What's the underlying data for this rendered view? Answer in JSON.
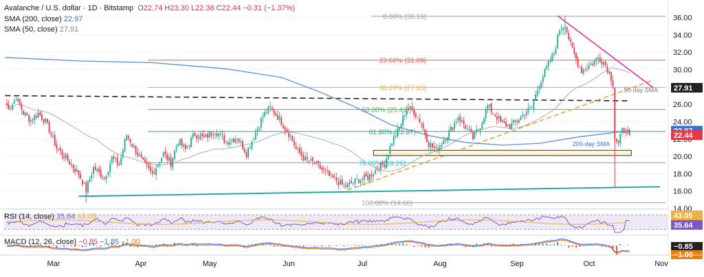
{
  "header": {
    "symbol": "Avalanche / U.S. dollar · 1D · Bitstamp",
    "ohlc": {
      "o_label": "O",
      "o": "22.74",
      "h_label": "H",
      "h": "23.30",
      "l_label": "L",
      "l": "22.38",
      "c_label": "C",
      "c": "22.44",
      "change": "−0.31 (−1.37%)"
    },
    "sma200_label": "SMA (200, close)",
    "sma200_value": "22.97",
    "sma50_label": "SMA (50, close)",
    "sma50_value": "27.91",
    "rsi_label": "RSI (14, close)",
    "rsi_value": "35.64",
    "rsi_value2": "43.05",
    "macd_label": "MACD (12, 26, close)",
    "macd_values": [
      "−0.85",
      "−1.85",
      "−1.00"
    ]
  },
  "colors": {
    "up": "#22ab94",
    "down": "#f23645",
    "sma200": "#5b8de0",
    "sma50": "#b8b8b8",
    "trend_pink": "#e040b0",
    "trend_orange": "#f0a030",
    "support_teal": "#26a6a6",
    "rsi": "#7e57c2",
    "macd_pos": "#26a69a",
    "macd_neg": "#ef5350"
  },
  "chart_data": {
    "type": "candlestick",
    "ylim": [
      14,
      36.6
    ],
    "y_ticks": [
      "14.00",
      "16.00",
      "18.00",
      "20.00",
      "22.00",
      "24.00",
      "26.00",
      "28.00",
      "30.00",
      "32.00",
      "34.00",
      "36.00"
    ],
    "x_labels": [
      "Mar",
      "Apr",
      "May",
      "Jun",
      "Jul",
      "Aug",
      "Sep",
      "Oct",
      "Nov"
    ],
    "fib_levels": [
      {
        "label": "0.00% (36.16)",
        "value": 36.16,
        "color": "#9e9e9e"
      },
      {
        "label": "23.60% (31.09)",
        "value": 31.09,
        "color": "#e45b5b"
      },
      {
        "label": "38.20% (27.95)",
        "value": 27.95,
        "color": "#f0b040"
      },
      {
        "label": "50.00% (25.41)",
        "value": 25.41,
        "color": "#4caf50"
      },
      {
        "label": "61.80% (22.87)",
        "value": 22.87,
        "color": "#26a69a"
      },
      {
        "label": "78.60% (19.26)",
        "value": 19.26,
        "color": "#26c6da"
      },
      {
        "label": "100.00% (14.66)",
        "value": 14.66,
        "color": "#9e9e9e"
      }
    ],
    "annotations": {
      "sma50": "50-day SMA",
      "sma200": "200-day SMA"
    },
    "price_tags": [
      {
        "value": "27.91",
        "color": "#222222"
      },
      {
        "value": "22.97",
        "color": "#3b6fd1"
      },
      {
        "value": "22.44",
        "color": "#f23645"
      }
    ],
    "rsi_tags": [
      {
        "value": "43.05",
        "color": "#f0b040"
      },
      {
        "value": "35.64",
        "color": "#7e57c2"
      }
    ],
    "macd_tags": [
      {
        "value": "−0.85",
        "color": "#222222"
      },
      {
        "value": "−1.00",
        "color": "#f57c00"
      }
    ],
    "anchors": [
      [
        0,
        26
      ],
      [
        3,
        25.6
      ],
      [
        6,
        26.8
      ],
      [
        10,
        25
      ],
      [
        14,
        24.2
      ],
      [
        18,
        25
      ],
      [
        22,
        24
      ],
      [
        28,
        21
      ],
      [
        34,
        19.6
      ],
      [
        40,
        18
      ],
      [
        44,
        16.2
      ],
      [
        48,
        18.7
      ],
      [
        54,
        17.5
      ],
      [
        58,
        19.8
      ],
      [
        62,
        19
      ],
      [
        66,
        22.5
      ],
      [
        70,
        21
      ],
      [
        75,
        19.2
      ],
      [
        80,
        18
      ],
      [
        86,
        20.3
      ],
      [
        90,
        19.3
      ],
      [
        94,
        21.8
      ],
      [
        98,
        20.8
      ],
      [
        103,
        22.6
      ],
      [
        108,
        22.1
      ],
      [
        114,
        23
      ],
      [
        120,
        21.7
      ],
      [
        126,
        22.2
      ],
      [
        131,
        20.4
      ],
      [
        136,
        22.8
      ],
      [
        140,
        24.7
      ],
      [
        144,
        25.6
      ],
      [
        148,
        24.6
      ],
      [
        152,
        23.3
      ],
      [
        155,
        22.3
      ],
      [
        158,
        20.9
      ],
      [
        163,
        19.6
      ],
      [
        168,
        19.2
      ],
      [
        172,
        18.5
      ],
      [
        176,
        17.7
      ],
      [
        180,
        17.2
      ],
      [
        184,
        16.5
      ],
      [
        188,
        16.9
      ],
      [
        192,
        17.3
      ],
      [
        197,
        17.6
      ],
      [
        202,
        18.6
      ],
      [
        206,
        19.2
      ],
      [
        210,
        21.7
      ],
      [
        214,
        23.2
      ],
      [
        218,
        25.6
      ],
      [
        222,
        25.2
      ],
      [
        226,
        23.8
      ],
      [
        230,
        21.5
      ],
      [
        234,
        20.7
      ],
      [
        238,
        21.9
      ],
      [
        242,
        23.1
      ],
      [
        246,
        24.6
      ],
      [
        250,
        23.4
      ],
      [
        254,
        22.1
      ],
      [
        258,
        23.6
      ],
      [
        262,
        25.8
      ],
      [
        266,
        24.8
      ],
      [
        270,
        23.7
      ],
      [
        274,
        23.5
      ],
      [
        278,
        24.1
      ],
      [
        282,
        25
      ],
      [
        286,
        25.6
      ],
      [
        290,
        28.4
      ],
      [
        294,
        30.2
      ],
      [
        298,
        31.9
      ],
      [
        301,
        34.6
      ],
      [
        304,
        35.3
      ],
      [
        307,
        32.8
      ],
      [
        310,
        31.2
      ],
      [
        313,
        29.9
      ],
      [
        316,
        30.3
      ],
      [
        319,
        30.8
      ],
      [
        322,
        31.4
      ],
      [
        325,
        30.9
      ],
      [
        328,
        29.7
      ],
      [
        330,
        28.4
      ],
      [
        331,
        22.2
      ],
      [
        333,
        21.4
      ],
      [
        335,
        22.9
      ],
      [
        337,
        23.1
      ],
      [
        339,
        22.44
      ]
    ]
  }
}
